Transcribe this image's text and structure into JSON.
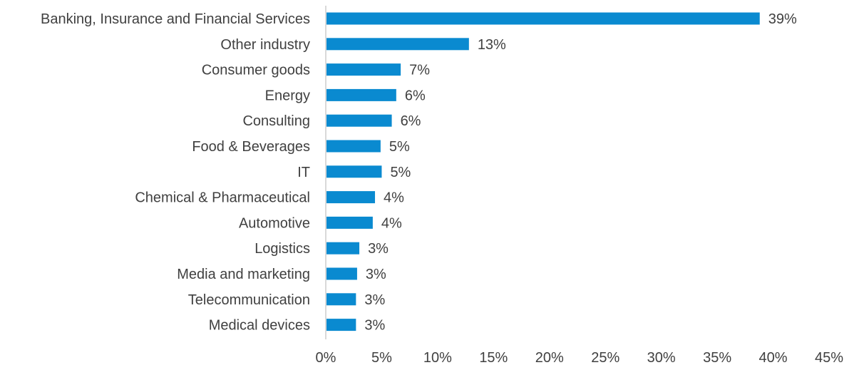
{
  "colors": {
    "bar": "#0a8ad0",
    "axis": "#d9d9d9",
    "text": "#404040"
  },
  "chart_data": {
    "type": "bar",
    "orientation": "horizontal",
    "title": "",
    "xlabel": "",
    "ylabel": "",
    "xlim": [
      0,
      45
    ],
    "x_ticks": [
      0,
      5,
      10,
      15,
      20,
      25,
      30,
      35,
      40,
      45
    ],
    "x_tick_labels": [
      "0%",
      "5%",
      "10%",
      "15%",
      "20%",
      "25%",
      "30%",
      "35%",
      "40%",
      "45%"
    ],
    "grid": false,
    "legend": "none",
    "categories": [
      "Banking, Insurance and Financial Services",
      "Other industry",
      "Consumer goods",
      "Energy",
      "Consulting",
      "Food & Beverages",
      "IT",
      "Chemical & Pharmaceutical",
      "Automotive",
      "Logistics",
      "Media and marketing",
      "Telecommunication",
      "Medical devices"
    ],
    "values": [
      38.8,
      12.8,
      6.7,
      6.3,
      5.9,
      4.9,
      5.0,
      4.4,
      4.2,
      3.0,
      2.8,
      2.7,
      2.7
    ],
    "value_labels": [
      "39%",
      "13%",
      "7%",
      "6%",
      "6%",
      "5%",
      "5%",
      "4%",
      "4%",
      "3%",
      "3%",
      "3%",
      "3%"
    ]
  }
}
